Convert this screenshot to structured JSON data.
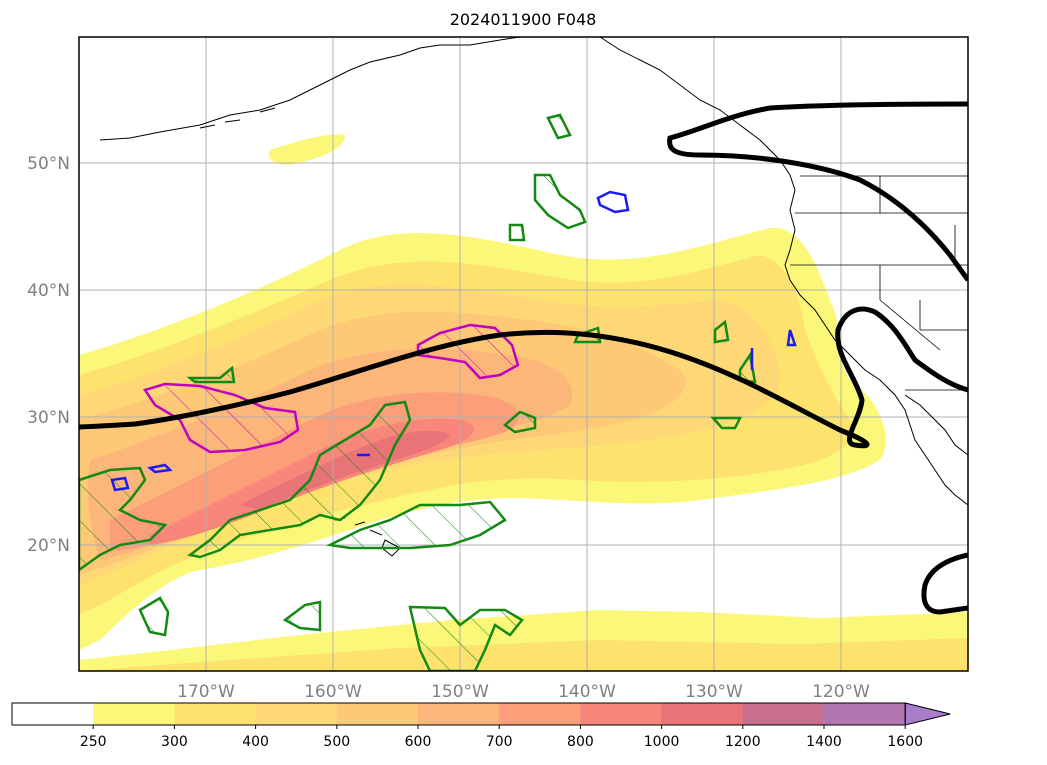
{
  "title": "2024011900 F048",
  "lat_labels": [
    "50°N",
    "40°N",
    "30°N",
    "20°N"
  ],
  "lon_labels": [
    "170°W",
    "160°W",
    "150°W",
    "140°W",
    "130°W",
    "120°W"
  ],
  "colorbar": {
    "ticks": [
      "250",
      "300",
      "400",
      "500",
      "600",
      "700",
      "800",
      "1000",
      "1200",
      "1400",
      "1600"
    ],
    "colors": [
      "#ffffff",
      "#fbf879",
      "#fde36e",
      "#fed876",
      "#fec977",
      "#fdb67a",
      "#fb9e79",
      "#f8867a",
      "#e97478",
      "#c9708e",
      "#b276b1",
      "#a87ecb"
    ]
  },
  "map": {
    "lat_range": [
      10,
      60
    ],
    "lon_range": [
      -180,
      -110
    ],
    "grid": true,
    "overlays": [
      "filled shading",
      "black thick contour",
      "green hatched regions",
      "magenta hatched regions",
      "blue small contours",
      "coastlines",
      "borders"
    ]
  }
}
